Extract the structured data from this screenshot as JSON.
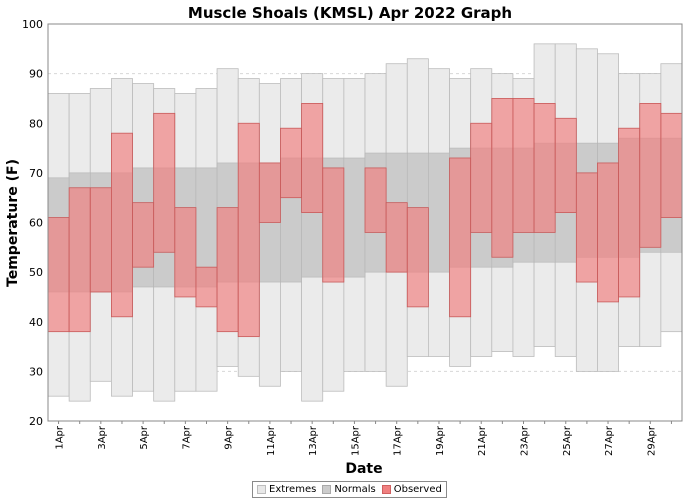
{
  "chart_data": {
    "type": "bar",
    "title": "Muscle Shoals (KMSL) Apr 2022 Graph",
    "xlabel": "Date",
    "ylabel": "Temperature (F)",
    "ylim": [
      20,
      100
    ],
    "yticks": [
      20,
      30,
      40,
      50,
      60,
      70,
      80,
      90,
      100
    ],
    "grid": true,
    "legend_position": "bottom-center",
    "categories": [
      "1Apr",
      "2Apr",
      "3Apr",
      "4Apr",
      "5Apr",
      "6Apr",
      "7Apr",
      "8Apr",
      "9Apr",
      "10Apr",
      "11Apr",
      "12Apr",
      "13Apr",
      "14Apr",
      "15Apr",
      "16Apr",
      "17Apr",
      "18Apr",
      "19Apr",
      "20Apr",
      "21Apr",
      "22Apr",
      "23Apr",
      "24Apr",
      "25Apr",
      "26Apr",
      "27Apr",
      "28Apr",
      "29Apr",
      "30Apr"
    ],
    "tick_labels": [
      "1Apr",
      "",
      "3Apr",
      "",
      "5Apr",
      "",
      "7Apr",
      "",
      "9Apr",
      "",
      "11Apr",
      "",
      "13Apr",
      "",
      "15Apr",
      "",
      "17Apr",
      "",
      "19Apr",
      "",
      "21Apr",
      "",
      "23Apr",
      "",
      "25Apr",
      "",
      "27Apr",
      "",
      "29Apr",
      ""
    ],
    "series": [
      {
        "name": "Extremes",
        "color": "#e8e8e8",
        "low": [
          25,
          24,
          28,
          25,
          26,
          24,
          26,
          26,
          31,
          29,
          27,
          30,
          24,
          26,
          30,
          30,
          27,
          33,
          33,
          31,
          33,
          34,
          33,
          35,
          33,
          30,
          30,
          35,
          35,
          38
        ],
        "high": [
          86,
          86,
          87,
          89,
          88,
          87,
          86,
          87,
          91,
          89,
          88,
          89,
          90,
          89,
          89,
          90,
          92,
          93,
          91,
          89,
          91,
          90,
          89,
          96,
          96,
          95,
          94,
          90,
          90,
          92
        ]
      },
      {
        "name": "Normals",
        "color": "#cccccc",
        "low": [
          46,
          46,
          46,
          46,
          47,
          47,
          47,
          47,
          48,
          48,
          48,
          48,
          49,
          49,
          49,
          50,
          50,
          50,
          50,
          51,
          51,
          51,
          52,
          52,
          52,
          53,
          53,
          53,
          54,
          54
        ],
        "high": [
          69,
          70,
          70,
          70,
          71,
          71,
          71,
          71,
          72,
          72,
          72,
          73,
          73,
          73,
          73,
          74,
          74,
          74,
          74,
          75,
          75,
          75,
          75,
          76,
          76,
          76,
          76,
          77,
          77,
          77
        ]
      },
      {
        "name": "Observed",
        "color": "#f08080",
        "low": [
          38,
          38,
          46,
          41,
          51,
          54,
          45,
          43,
          38,
          37,
          60,
          65,
          62,
          48,
          null,
          58,
          50,
          43,
          null,
          41,
          58,
          53,
          58,
          58,
          62,
          48,
          44,
          45,
          55,
          61
        ],
        "high": [
          61,
          67,
          67,
          78,
          64,
          82,
          63,
          51,
          63,
          80,
          72,
          79,
          84,
          71,
          null,
          71,
          64,
          63,
          null,
          73,
          80,
          85,
          85,
          84,
          81,
          70,
          72,
          79,
          84,
          82
        ]
      }
    ]
  },
  "legend": {
    "items": [
      {
        "label": "Extremes",
        "color": "#e8e8e8"
      },
      {
        "label": "Normals",
        "color": "#cccccc"
      },
      {
        "label": "Observed",
        "color": "#f08080"
      }
    ]
  }
}
